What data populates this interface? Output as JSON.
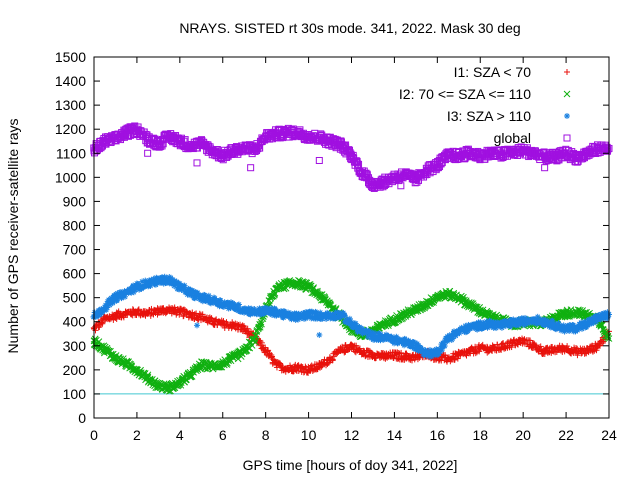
{
  "chart_data": {
    "type": "scatter",
    "title": "NRAYS. SISTED rt 30s mode. 341, 2022. Mask 30 deg",
    "xlabel": "GPS time [hours of doy 341, 2022]",
    "ylabel": "Number of GPS receiver-satellite rays",
    "xlim": [
      0,
      24
    ],
    "ylim": [
      0,
      1500
    ],
    "xticks": [
      "0",
      "2",
      "4",
      "6",
      "8",
      "10",
      "12",
      "14",
      "16",
      "18",
      "20",
      "22",
      "24"
    ],
    "yticks": [
      "0",
      "100",
      "200",
      "300",
      "400",
      "500",
      "600",
      "700",
      "800",
      "900",
      "1000",
      "1100",
      "1200",
      "1300",
      "1400",
      "1500"
    ],
    "grid": false,
    "legend_position": "top-right",
    "reference_line": {
      "y": 100,
      "color": "#40c8d0"
    },
    "series": [
      {
        "name": "I1: SZA < 70",
        "marker": "+",
        "color": "#e8120c",
        "x": [
          0,
          0.5,
          1,
          1.5,
          2,
          2.5,
          3,
          3.5,
          4,
          4.5,
          5,
          5.5,
          6,
          6.5,
          7,
          7.5,
          8,
          8.5,
          9,
          9.5,
          10,
          10.5,
          11,
          11.5,
          12,
          12.5,
          13,
          13.5,
          14,
          14.5,
          15,
          15.5,
          16,
          16.5,
          17,
          17.5,
          18,
          18.5,
          19,
          19.5,
          20,
          20.5,
          21,
          21.5,
          22,
          22.5,
          23,
          23.5,
          24
        ],
        "y": [
          370,
          410,
          425,
          435,
          440,
          435,
          445,
          450,
          440,
          430,
          420,
          400,
          390,
          385,
          370,
          330,
          280,
          220,
          205,
          210,
          200,
          215,
          245,
          280,
          300,
          270,
          265,
          255,
          260,
          255,
          250,
          270,
          250,
          245,
          260,
          275,
          290,
          285,
          295,
          310,
          320,
          300,
          275,
          285,
          290,
          275,
          280,
          300,
          360
        ]
      },
      {
        "name": "I2: 70 <= SZA <= 110",
        "marker": "x",
        "color": "#10b010",
        "x": [
          0,
          0.5,
          1,
          1.5,
          2,
          2.5,
          3,
          3.5,
          4,
          4.5,
          5,
          5.5,
          6,
          6.5,
          7,
          7.5,
          8,
          8.5,
          9,
          9.5,
          10,
          10.5,
          11,
          11.5,
          12,
          12.5,
          13,
          13.5,
          14,
          14.5,
          15,
          15.5,
          16,
          16.5,
          17,
          17.5,
          18,
          18.5,
          19,
          19.5,
          20,
          20.5,
          21,
          21.5,
          22,
          22.5,
          23,
          23.5,
          24
        ],
        "y": [
          320,
          285,
          250,
          225,
          200,
          165,
          135,
          125,
          145,
          180,
          220,
          215,
          225,
          250,
          275,
          330,
          450,
          540,
          555,
          560,
          545,
          510,
          470,
          420,
          370,
          345,
          360,
          390,
          410,
          430,
          450,
          475,
          505,
          515,
          500,
          470,
          445,
          420,
          405,
          390,
          395,
          395,
          395,
          420,
          435,
          440,
          425,
          410,
          330
        ]
      },
      {
        "name": "I3: SZA > 110",
        "marker": "*",
        "color": "#1a80e0",
        "x": [
          0,
          0.5,
          1,
          1.5,
          2,
          2.5,
          3,
          3.5,
          4,
          4.5,
          5,
          5.5,
          6,
          6.5,
          7,
          7.5,
          8,
          8.5,
          9,
          9.5,
          10,
          10.5,
          11,
          11.5,
          12,
          12.5,
          13,
          13.5,
          14,
          14.5,
          15,
          15.5,
          16,
          16.5,
          17,
          17.5,
          18,
          18.5,
          19,
          19.5,
          20,
          20.5,
          21,
          21.5,
          22,
          22.5,
          23,
          23.5,
          24
        ],
        "y": [
          420,
          460,
          500,
          520,
          545,
          560,
          570,
          575,
          545,
          520,
          500,
          490,
          475,
          465,
          450,
          440,
          445,
          440,
          425,
          420,
          430,
          425,
          425,
          430,
          390,
          360,
          340,
          335,
          325,
          315,
          300,
          265,
          275,
          330,
          360,
          375,
          385,
          390,
          385,
          395,
          400,
          410,
          400,
          385,
          370,
          375,
          395,
          415,
          430
        ]
      },
      {
        "name": "global",
        "marker": "square",
        "color": "#a010e0",
        "x": [
          0,
          0.5,
          1,
          1.5,
          2,
          2.5,
          3,
          3.5,
          4,
          4.5,
          5,
          5.5,
          6,
          6.5,
          7,
          7.5,
          8,
          8.5,
          9,
          9.5,
          10,
          10.5,
          11,
          11.5,
          12,
          12.5,
          13,
          13.5,
          14,
          14.5,
          15,
          15.5,
          16,
          16.5,
          17,
          17.5,
          18,
          18.5,
          19,
          19.5,
          20,
          20.5,
          21,
          21.5,
          22,
          22.5,
          23,
          23.5,
          24
        ],
        "y": [
          1110,
          1150,
          1160,
          1185,
          1200,
          1160,
          1140,
          1170,
          1150,
          1130,
          1140,
          1110,
          1090,
          1110,
          1120,
          1115,
          1170,
          1180,
          1185,
          1185,
          1170,
          1165,
          1150,
          1135,
          1090,
          1020,
          970,
          980,
          1000,
          1010,
          990,
          1030,
          1050,
          1090,
          1090,
          1100,
          1090,
          1100,
          1095,
          1105,
          1110,
          1100,
          1085,
          1085,
          1100,
          1080,
          1100,
          1120,
          1120
        ]
      }
    ],
    "outliers": {
      "global": [
        {
          "x": 0.1,
          "y": 1140
        },
        {
          "x": 4.8,
          "y": 1060
        },
        {
          "x": 7.3,
          "y": 1040
        },
        {
          "x": 10.5,
          "y": 1070
        },
        {
          "x": 14.3,
          "y": 965
        },
        {
          "x": 21,
          "y": 1040
        },
        {
          "x": 2.5,
          "y": 1100
        }
      ],
      "I3: SZA > 110": [
        {
          "x": 4.8,
          "y": 385
        },
        {
          "x": 10.5,
          "y": 345
        }
      ]
    }
  }
}
